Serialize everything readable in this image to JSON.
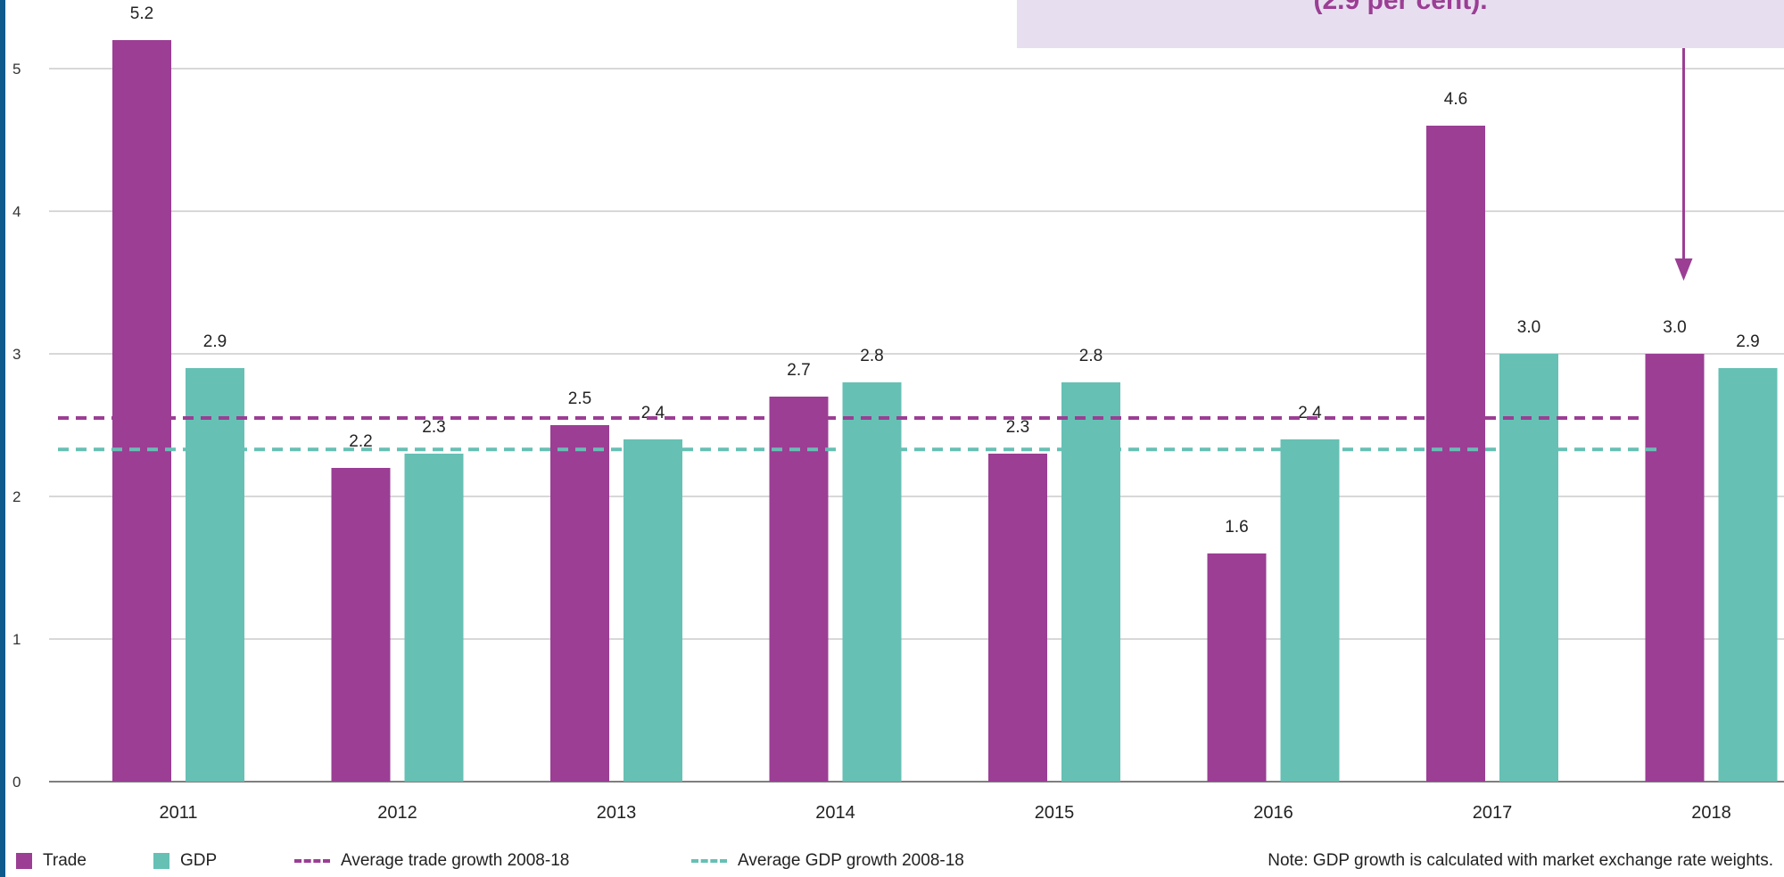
{
  "callout": {
    "text": "(2.9 per cent)."
  },
  "colors": {
    "trade": "#9b3e94",
    "gdp": "#66c0b4",
    "grid": "#cccccc"
  },
  "chart_data": {
    "type": "bar",
    "categories": [
      "2011",
      "2012",
      "2013",
      "2014",
      "2015",
      "2016",
      "2017",
      "2018"
    ],
    "series": [
      {
        "name": "Trade",
        "values": [
          5.2,
          2.2,
          2.5,
          2.7,
          2.3,
          1.6,
          4.6,
          3.0
        ]
      },
      {
        "name": "GDP",
        "values": [
          2.9,
          2.3,
          2.4,
          2.8,
          2.8,
          2.4,
          3.0,
          2.9
        ]
      }
    ],
    "data_labels": {
      "Trade": [
        "5.2",
        "2.2",
        "2.5",
        "2.7",
        "2.3",
        "1.6",
        "4.6",
        "3.0"
      ],
      "GDP": [
        "2.9",
        "2.3",
        "2.4",
        "2.8",
        "2.8",
        "2.4",
        "3.0",
        "2.9"
      ]
    },
    "reference_lines": [
      {
        "name": "Average trade growth 2008-18",
        "value": 2.55,
        "color": "#9b3e94"
      },
      {
        "name": "Average GDP growth 2008-18",
        "value": 2.33,
        "color": "#66c0b4"
      }
    ],
    "ylim": [
      0,
      5.3
    ],
    "yticks": [
      "0",
      "1",
      "2",
      "3",
      "4",
      "5"
    ],
    "grid": true,
    "legend_position": "bottom",
    "annotation_arrow_category": "2018"
  },
  "legend": {
    "trade": "Trade",
    "gdp": "GDP",
    "avg_trade": "Average trade growth 2008-18",
    "avg_gdp": "Average GDP growth 2008-18"
  },
  "note": "Note: GDP growth is calculated with market exchange rate weights."
}
